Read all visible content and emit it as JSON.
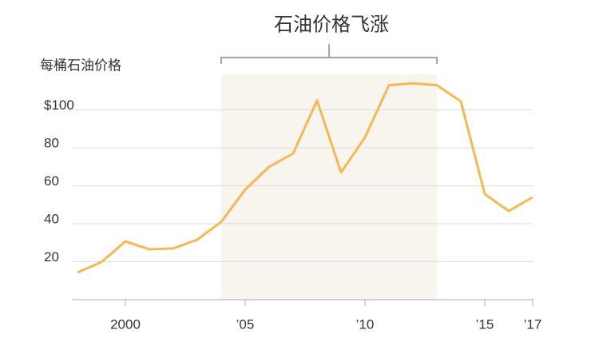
{
  "chart_data": {
    "type": "line",
    "title": "石油价格飞涨",
    "y_label": "每桶石油价格",
    "x": [
      1998,
      1999,
      2000,
      2001,
      2002,
      2003,
      2004,
      2005,
      2006,
      2007,
      2008,
      2009,
      2010,
      2011,
      2012,
      2013,
      2014,
      2015,
      2016,
      2017
    ],
    "series": [
      {
        "name": "Oil price",
        "color": "#f5b853",
        "values": [
          14.3,
          19.8,
          30.7,
          26.5,
          27,
          31.6,
          41,
          58,
          70,
          77,
          105,
          67,
          85.5,
          113,
          114,
          113,
          104.5,
          55.6,
          46.7,
          54
        ]
      }
    ],
    "highlight": [
      2004,
      2013
    ],
    "xlim": [
      1998,
      2017
    ],
    "xticks": [
      {
        "value": 2000,
        "label": "2000"
      },
      {
        "value": 2005,
        "label": "’05"
      },
      {
        "value": 2010,
        "label": "’10"
      },
      {
        "value": 2015,
        "label": "’15"
      },
      {
        "value": 2017,
        "label": "’17"
      }
    ],
    "ylim": [
      0,
      120
    ],
    "yticks": [
      20,
      40,
      60,
      80,
      {
        "value": 100,
        "label": "$100"
      }
    ],
    "grid": true
  }
}
